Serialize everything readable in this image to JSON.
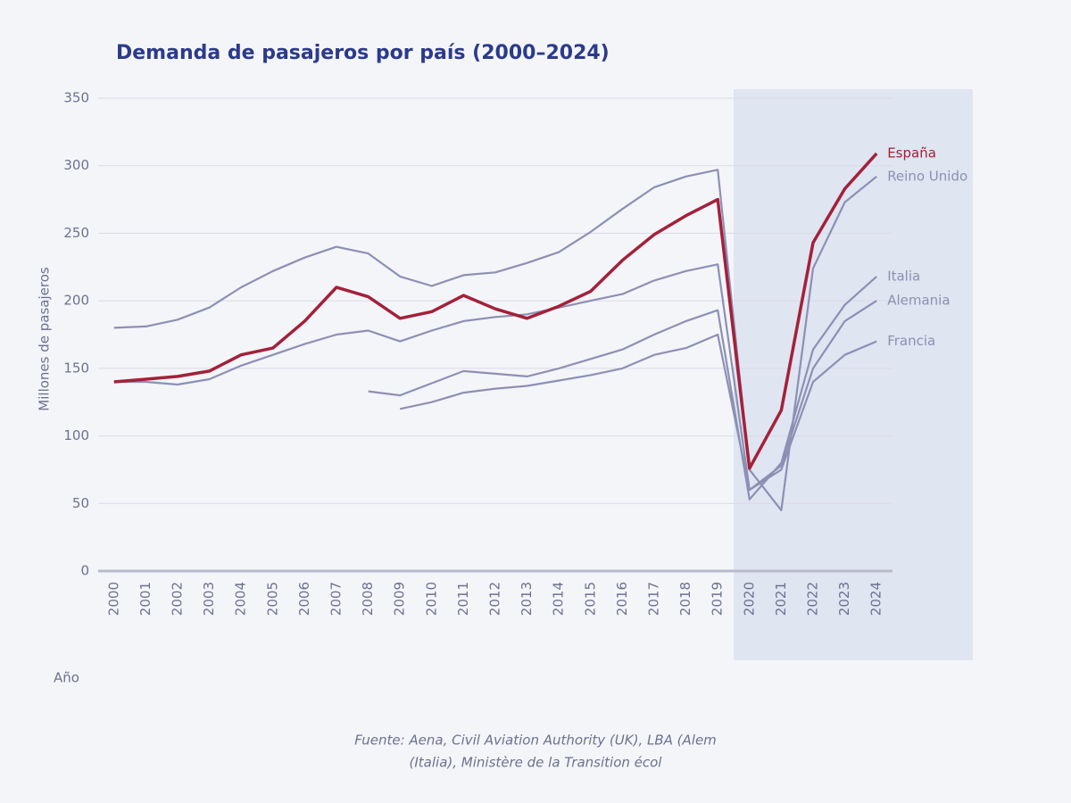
{
  "chart_data": {
    "type": "line",
    "title": "Demanda de pasajeros por país (2000–2024)",
    "y_label": "Millones de pasajeros",
    "x_label": "Año",
    "source": [
      "Fuente: Aena, Civil Aviation Authority (UK), LBA (Alem",
      "(Italia), Ministère de la Transition écol"
    ],
    "categories": [
      "2000",
      "2001",
      "2002",
      "2003",
      "2004",
      "2005",
      "2006",
      "2007",
      "2008",
      "2009",
      "2010",
      "2011",
      "2012",
      "2013",
      "2014",
      "2015",
      "2016",
      "2017",
      "2018",
      "2019",
      "2020",
      "2021",
      "2022",
      "2023",
      "2024"
    ],
    "ylim": [
      0,
      350
    ],
    "yticks": [
      0,
      50,
      100,
      150,
      200,
      250,
      300,
      350
    ],
    "grid": true,
    "series": [
      {
        "name": "Reino Unido",
        "color": "#8c90b4",
        "values": [
          180,
          181,
          186,
          195,
          210,
          222,
          232,
          240,
          235,
          218,
          211,
          219,
          221,
          228,
          236,
          251,
          268,
          284,
          292,
          297,
          75,
          45,
          224,
          273,
          292
        ]
      },
      {
        "name": "Alemania",
        "color": "#8c90b4",
        "values": [
          140,
          140,
          138,
          142,
          152,
          160,
          168,
          175,
          178,
          170,
          178,
          185,
          188,
          190,
          195,
          200,
          205,
          215,
          222,
          227,
          60,
          78,
          150,
          185,
          200
        ]
      },
      {
        "name": "Italia",
        "color": "#8c90b4",
        "values": [
          null,
          null,
          null,
          null,
          null,
          null,
          null,
          null,
          133,
          130,
          139,
          148,
          146,
          144,
          150,
          157,
          164,
          175,
          185,
          193,
          53,
          80,
          164,
          197,
          218
        ]
      },
      {
        "name": "Francia",
        "color": "#8c90b4",
        "values": [
          null,
          null,
          null,
          null,
          null,
          null,
          null,
          null,
          null,
          120,
          125,
          132,
          135,
          137,
          141,
          145,
          150,
          160,
          165,
          175,
          60,
          75,
          140,
          160,
          170
        ]
      },
      {
        "name": "España",
        "color": "#a3213a",
        "values": [
          140,
          142,
          144,
          148,
          160,
          165,
          185,
          210,
          203,
          187,
          192,
          204,
          194,
          187,
          196,
          207,
          230,
          249,
          263,
          275,
          76,
          119,
          243,
          283,
          309
        ]
      }
    ]
  }
}
